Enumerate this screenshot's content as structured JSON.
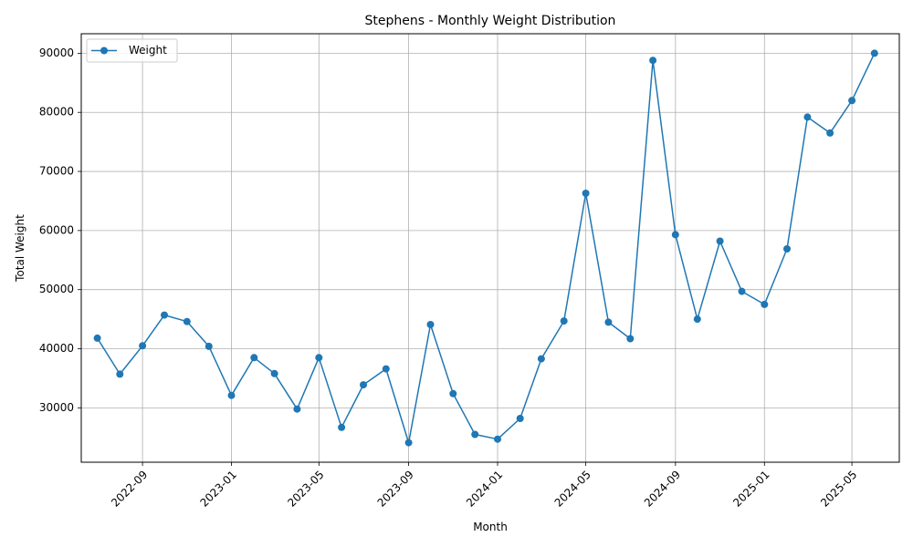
{
  "chart_data": {
    "type": "line",
    "title": "Stephens - Monthly Weight Distribution",
    "xlabel": "Month",
    "ylabel": "Total Weight",
    "x": [
      "2022-07",
      "2022-08",
      "2022-09",
      "2022-10",
      "2022-11",
      "2022-12",
      "2023-01",
      "2023-02",
      "2023-03",
      "2023-04",
      "2023-05",
      "2023-06",
      "2023-07",
      "2023-08",
      "2023-09",
      "2023-10",
      "2023-11",
      "2023-12",
      "2024-01",
      "2024-02",
      "2024-03",
      "2024-04",
      "2024-05",
      "2024-06",
      "2024-07",
      "2024-08",
      "2024-09",
      "2024-10",
      "2024-11",
      "2024-12",
      "2025-01",
      "2025-02",
      "2025-03",
      "2025-04",
      "2025-05",
      "2025-06"
    ],
    "series": [
      {
        "name": "Weight",
        "color": "#1f77b4",
        "marker": "circle",
        "values": [
          41800,
          35700,
          40500,
          45700,
          44600,
          40400,
          32100,
          38500,
          35800,
          29800,
          38500,
          26700,
          33900,
          36600,
          24100,
          44100,
          32400,
          25500,
          24700,
          28200,
          38300,
          44700,
          66300,
          44500,
          41700,
          88800,
          59300,
          45000,
          58200,
          49700,
          47500,
          56900,
          79200,
          76500,
          82000,
          90000
        ]
      }
    ],
    "x_ticks": [
      "2022-09",
      "2023-01",
      "2023-05",
      "2023-09",
      "2024-01",
      "2024-05",
      "2024-09",
      "2025-01",
      "2025-05"
    ],
    "y_ticks": [
      30000,
      40000,
      50000,
      60000,
      70000,
      80000,
      90000
    ],
    "xlim": [
      "2022-06-09",
      "2025-07-05"
    ],
    "ylim": [
      20800,
      93300
    ],
    "grid": true,
    "legend": "upper-left"
  }
}
